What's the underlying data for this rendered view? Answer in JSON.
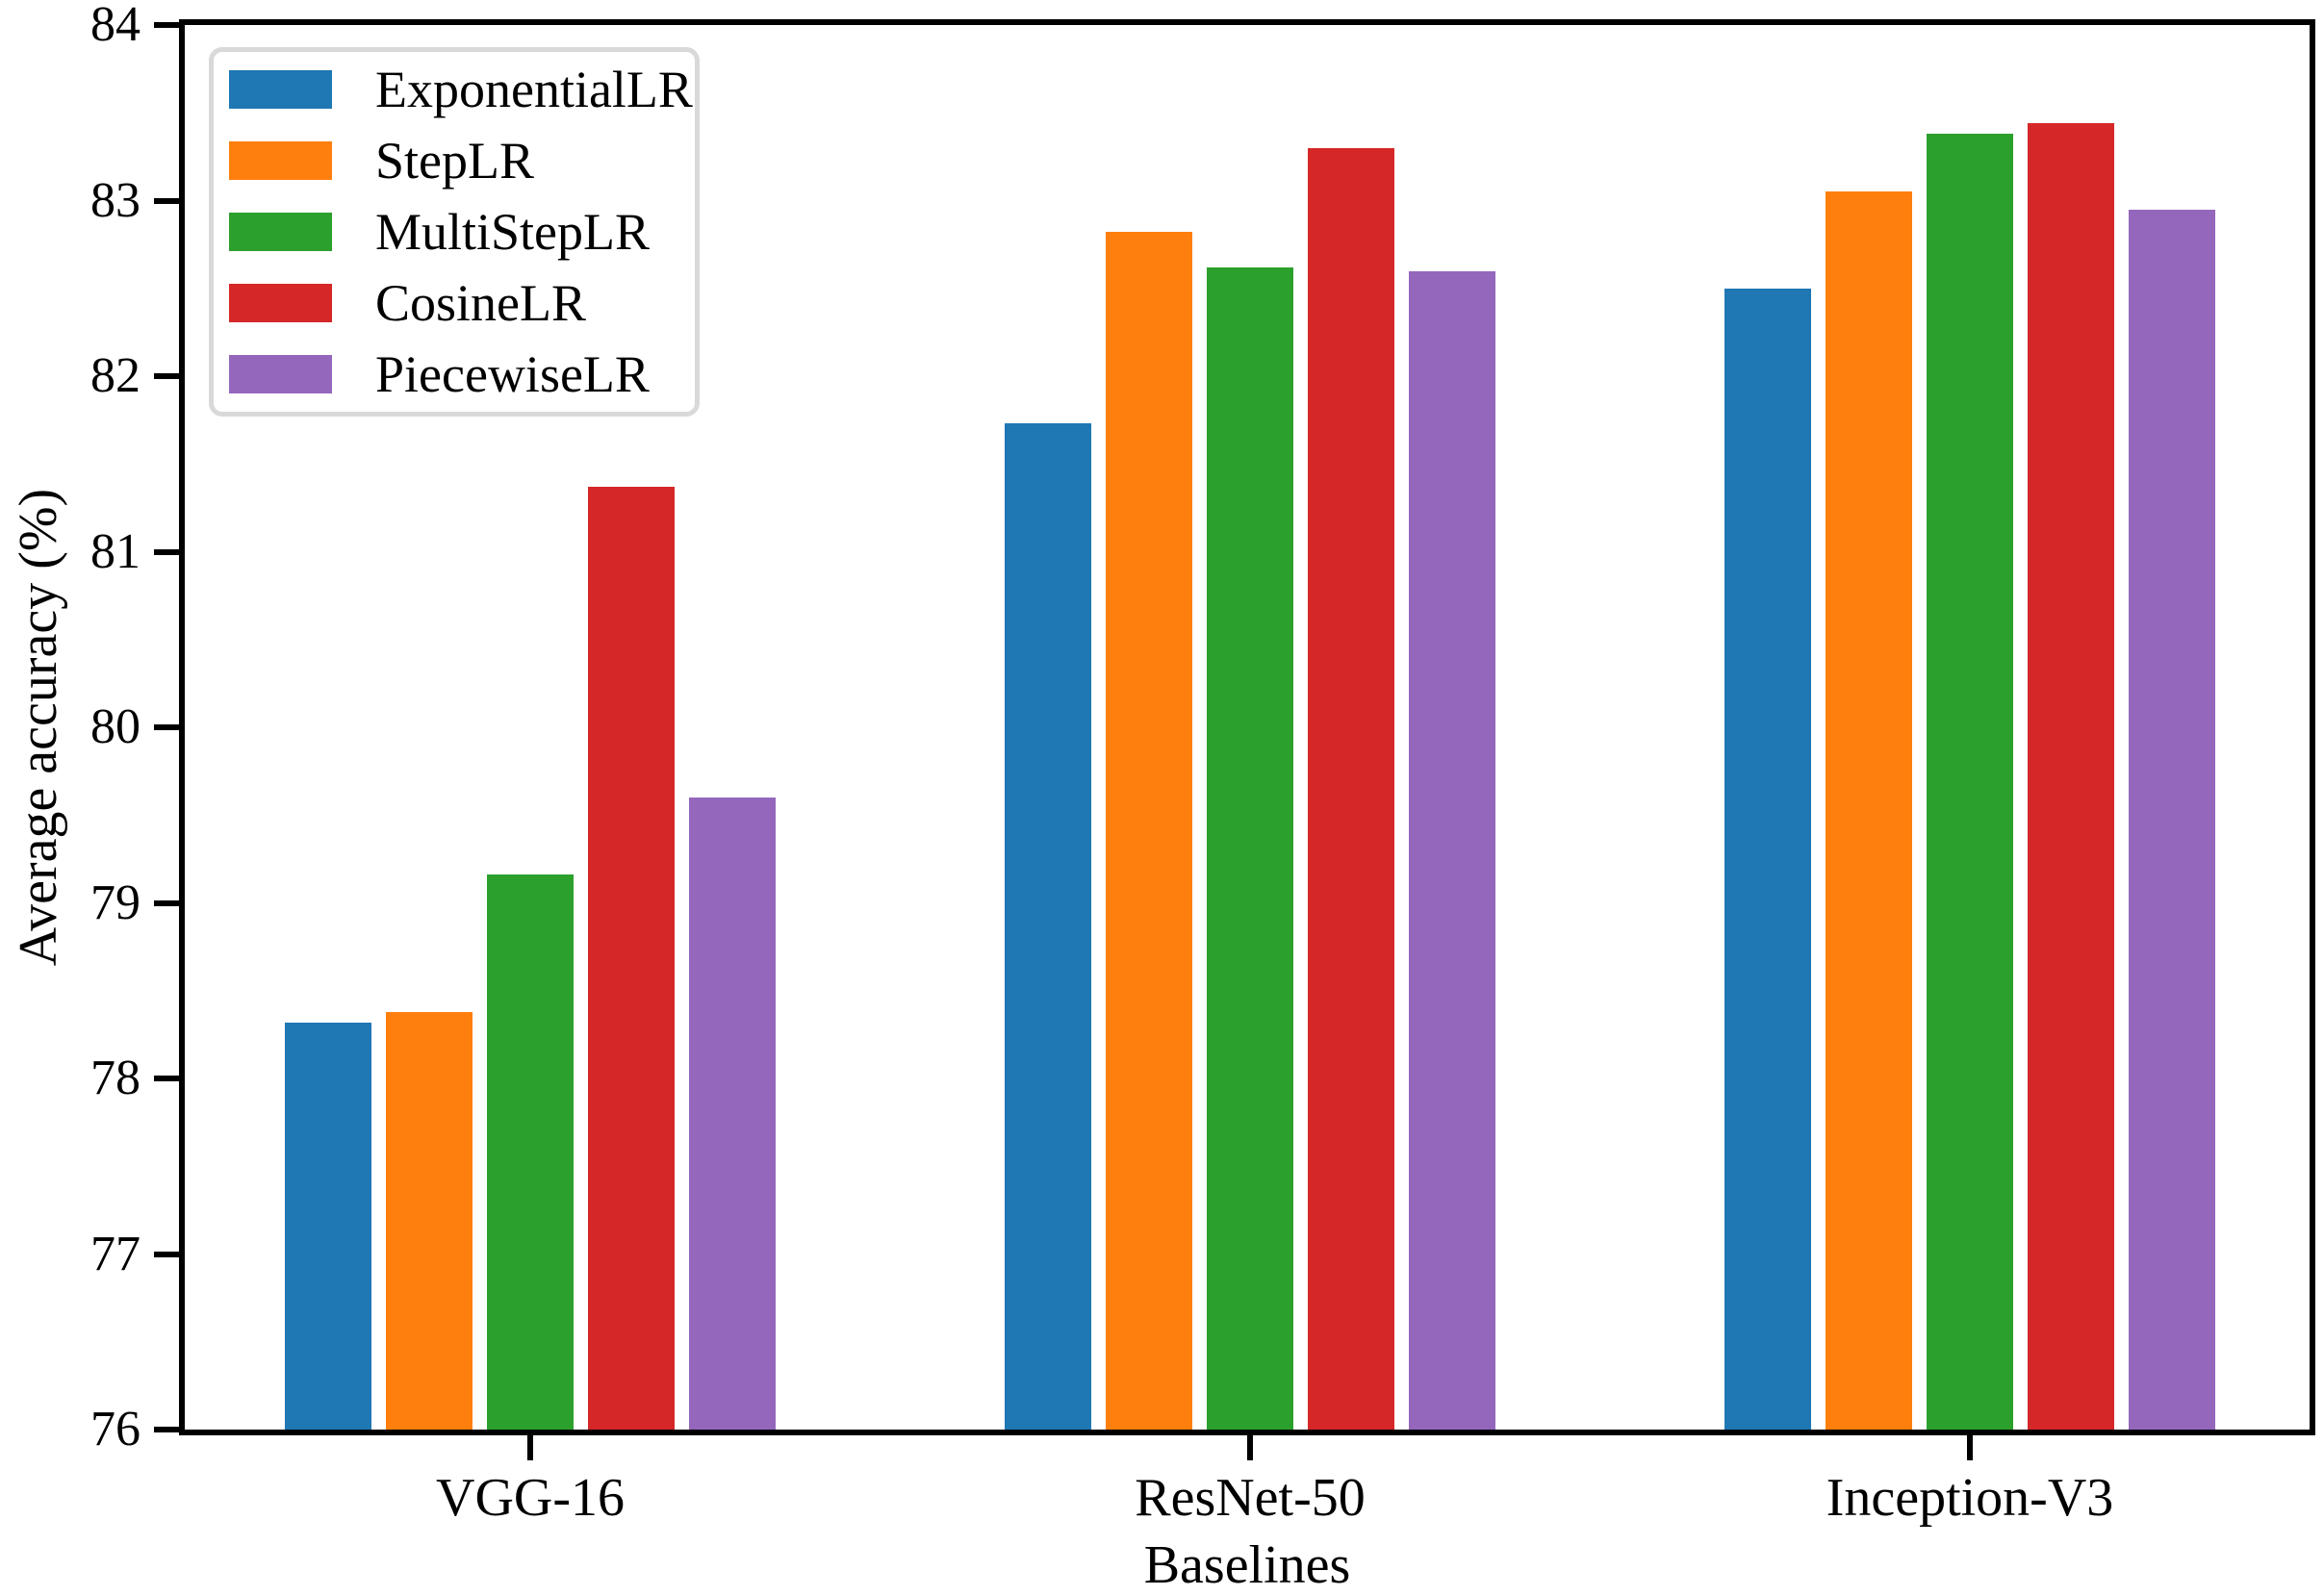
{
  "chart_data": {
    "type": "bar",
    "title": "",
    "categories": [
      "VGG-16",
      "ResNet-50",
      "Inception-V3"
    ],
    "series": [
      {
        "name": "ExponentialLR",
        "color": "#1f77b4",
        "values": [
          78.32,
          81.73,
          82.5
        ]
      },
      {
        "name": "StepLR",
        "color": "#ff7f0e",
        "values": [
          78.38,
          82.82,
          83.05
        ]
      },
      {
        "name": "MultiStepLR",
        "color": "#2ca02c",
        "values": [
          79.16,
          82.62,
          83.38
        ]
      },
      {
        "name": "CosineLR",
        "color": "#d62728",
        "values": [
          81.37,
          83.3,
          83.44
        ]
      },
      {
        "name": "PiecewiseLR",
        "color": "#9467bd",
        "values": [
          79.6,
          82.6,
          82.95
        ]
      }
    ],
    "xlabel": "Baselines",
    "ylabel": "Average accuracy (%)",
    "ylim": [
      76,
      84
    ],
    "yticks": [
      76,
      77,
      78,
      79,
      80,
      81,
      82,
      83,
      84
    ],
    "grid": false,
    "legend_position": "upper left",
    "legend_border_color": "#d9d9d9",
    "axis_color": "#000000",
    "background": "#ffffff"
  }
}
